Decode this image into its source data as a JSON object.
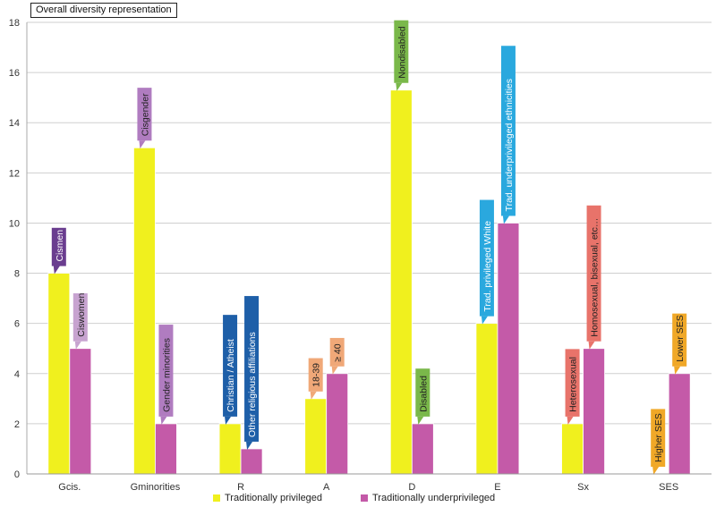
{
  "chart_data": {
    "type": "bar",
    "title": "Overall diversity representation",
    "categories": [
      "Gcis.",
      "Gminorities",
      "R",
      "A",
      "D",
      "E",
      "Sx",
      "SES"
    ],
    "ylim": [
      0,
      18
    ],
    "yticks": [
      0,
      2,
      4,
      6,
      8,
      10,
      12,
      14,
      16,
      18
    ],
    "grid": true,
    "legend_position": "bottom",
    "series": [
      {
        "name": "Traditionally privileged",
        "color": "#f0f01e",
        "values": [
          8,
          13,
          2,
          3,
          15.3,
          6,
          2,
          0
        ],
        "labels": [
          "Cismen",
          "Cisgender",
          "Christian / Atheist",
          "18-39",
          "Nondisabled",
          "Trad. privileged White",
          "Heterosexual",
          "Higher SES"
        ]
      },
      {
        "name": "Traditionally underprivileged",
        "color": "#c45aa8",
        "values": [
          5,
          2,
          1,
          4,
          2,
          10,
          5,
          4
        ],
        "labels": [
          "Ciswomen",
          "Gender minorities",
          "Other religious affiliations",
          "≥ 40",
          "Disabled",
          "Trad. underprivileged ethnicities",
          "Homosexual, bisexual, etc…",
          "Lower SES"
        ]
      }
    ],
    "label_colors": [
      [
        "#6a3d8f",
        "#c7a3d0"
      ],
      [
        "#b07cc0",
        "#b07cc0"
      ],
      [
        "#1e5fa8",
        "#1e5fa8"
      ],
      [
        "#f0a878",
        "#f0a878"
      ],
      [
        "#7ab84a",
        "#7ab84a"
      ],
      [
        "#2aa8de",
        "#2aa8de"
      ],
      [
        "#e8736a",
        "#e8736a"
      ],
      [
        "#f0a828",
        "#f0a828"
      ]
    ]
  }
}
